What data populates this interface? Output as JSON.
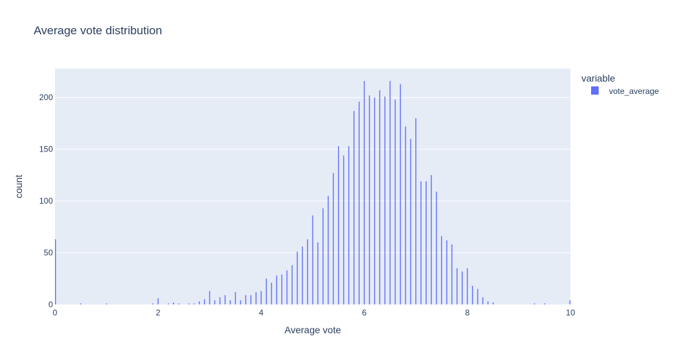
{
  "chart_data": {
    "type": "bar",
    "title": "Average vote distribution",
    "xlabel": "Average vote",
    "ylabel": "count",
    "xlim": [
      0,
      10
    ],
    "ylim": [
      0,
      228
    ],
    "xticks": [
      0,
      2,
      4,
      6,
      8,
      10
    ],
    "yticks": [
      0,
      50,
      100,
      150,
      200
    ],
    "grid": true,
    "legend": {
      "title": "variable",
      "position": "right-top"
    },
    "colors": {
      "bar": "#636efa",
      "plot_bg": "#e5ecf6",
      "grid": "#ffffff",
      "text": "#2a3f5f"
    },
    "series": [
      {
        "name": "vote_average",
        "x": [
          0,
          0.5,
          1,
          1.9,
          2,
          2.2,
          2.3,
          2.4,
          2.6,
          2.7,
          2.8,
          2.9,
          3,
          3.1,
          3.2,
          3.3,
          3.4,
          3.5,
          3.6,
          3.7,
          3.8,
          3.9,
          4,
          4.1,
          4.2,
          4.3,
          4.4,
          4.5,
          4.6,
          4.7,
          4.8,
          4.9,
          5,
          5.1,
          5.2,
          5.3,
          5.4,
          5.5,
          5.6,
          5.7,
          5.8,
          5.9,
          6,
          6.1,
          6.2,
          6.3,
          6.4,
          6.5,
          6.6,
          6.7,
          6.8,
          6.9,
          7,
          7.1,
          7.2,
          7.3,
          7.4,
          7.5,
          7.6,
          7.7,
          7.8,
          7.9,
          8,
          8.1,
          8.2,
          8.3,
          8.4,
          8.5,
          9.3,
          9.5,
          10
        ],
        "values": [
          63,
          1,
          1,
          1,
          6,
          1,
          2,
          1,
          1,
          1,
          3,
          5,
          13,
          4,
          7,
          9,
          4,
          12,
          4,
          9,
          9,
          12,
          13,
          25,
          21,
          28,
          29,
          33,
          38,
          51,
          56,
          63,
          86,
          60,
          93,
          105,
          127,
          153,
          144,
          153,
          187,
          196,
          216,
          202,
          200,
          207,
          201,
          216,
          198,
          213,
          172,
          160,
          180,
          119,
          119,
          125,
          109,
          66,
          62,
          58,
          35,
          32,
          35,
          18,
          15,
          7,
          3,
          2,
          1,
          1,
          4
        ]
      }
    ]
  }
}
